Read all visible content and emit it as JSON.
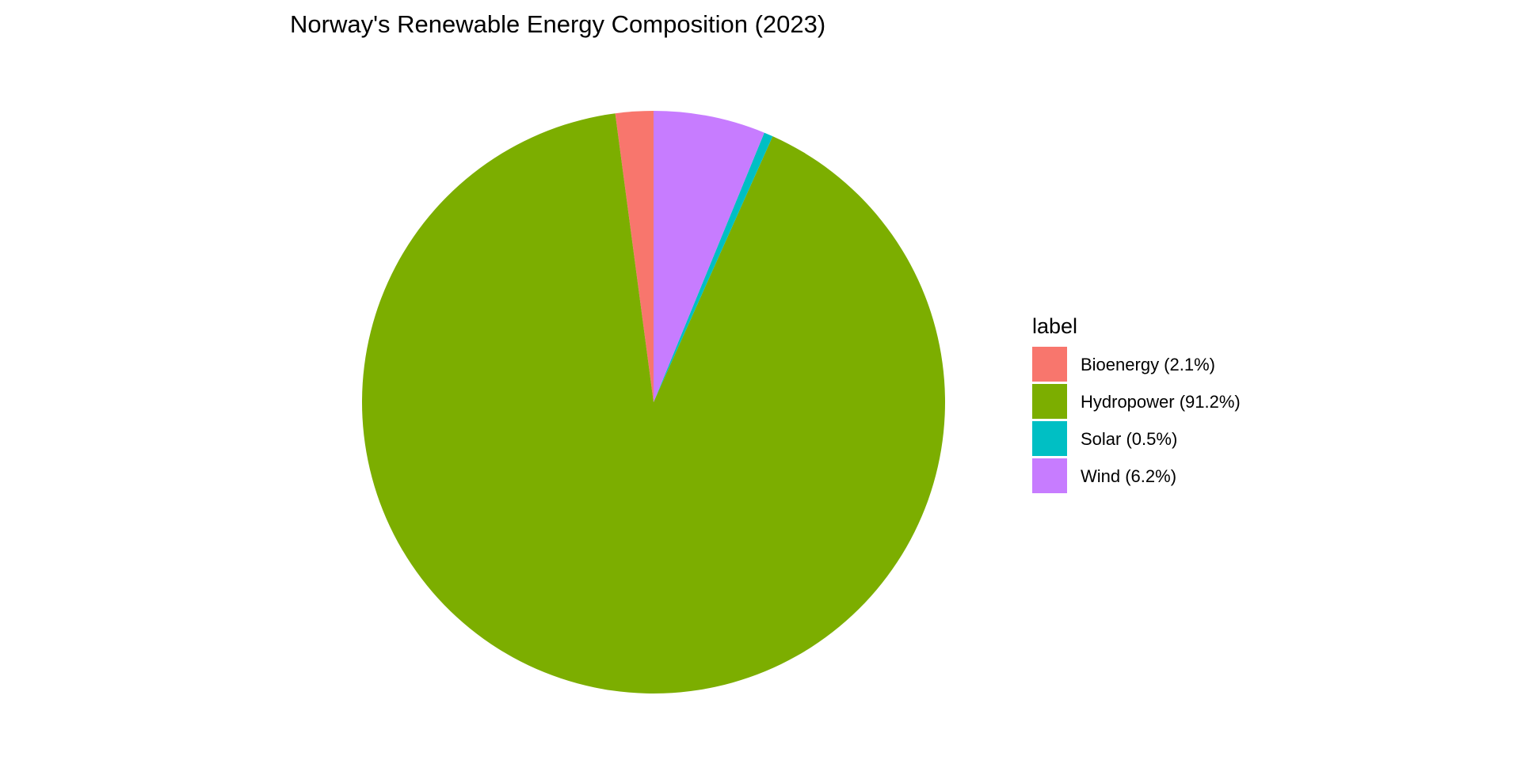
{
  "chart_data": {
    "type": "pie",
    "title": "Norway's Renewable Energy Composition (2023)",
    "legend_title": "label",
    "legend_position": "right",
    "start_angle_deg": 0,
    "direction": "counter-clockwise",
    "slices": [
      {
        "category": "Bioenergy",
        "label": "Bioenergy (2.1%)",
        "value": 2.1,
        "color": "#F8766D"
      },
      {
        "category": "Hydropower",
        "label": "Hydropower (91.2%)",
        "value": 91.2,
        "color": "#7CAE00"
      },
      {
        "category": "Solar",
        "label": "Solar (0.5%)",
        "value": 0.5,
        "color": "#00BFC4"
      },
      {
        "category": "Wind",
        "label": "Wind (6.2%)",
        "value": 6.2,
        "color": "#C77CFF"
      }
    ]
  }
}
